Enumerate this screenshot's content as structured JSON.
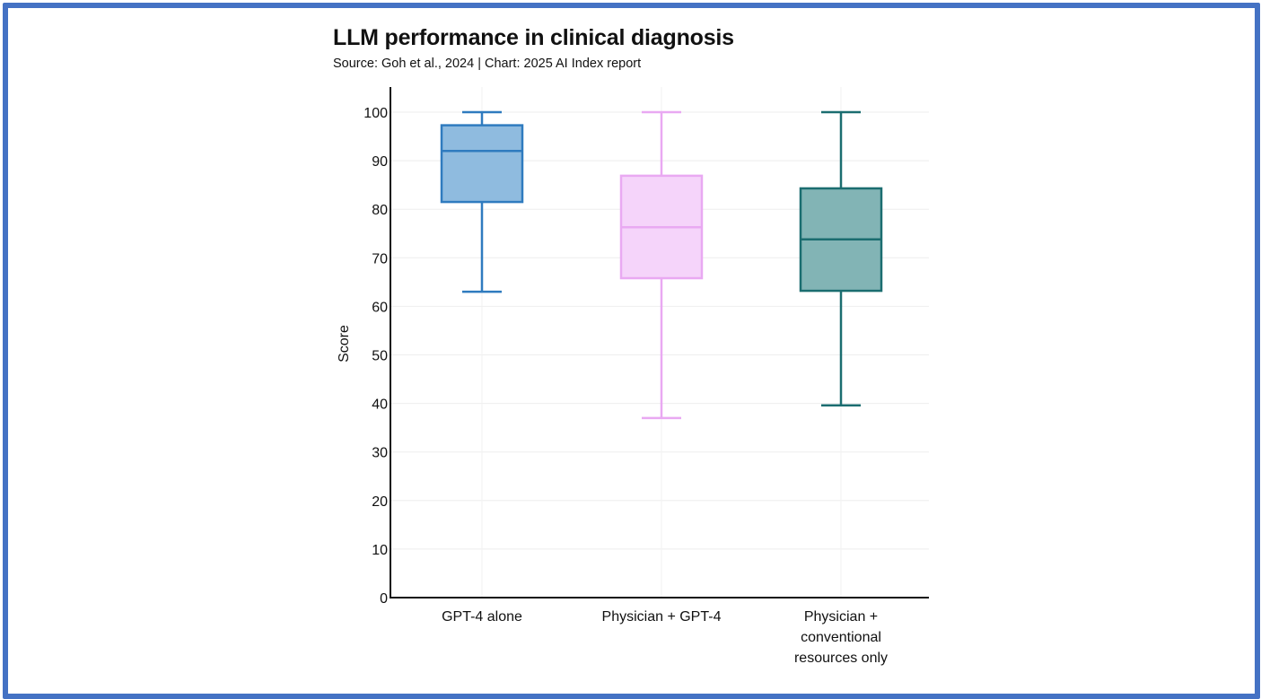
{
  "header": {
    "title": "LLM performance in clinical diagnosis",
    "subtitle": "Source: Goh et al., 2024 | Chart: 2025 AI Index report"
  },
  "frame_color": "#4472C4",
  "chart_data": {
    "type": "box",
    "title": "LLM performance in clinical diagnosis",
    "subtitle": "Source: Goh et al., 2024 | Chart: 2025 AI Index report",
    "xlabel": "",
    "ylabel": "Score",
    "ylim": [
      0,
      100
    ],
    "yticks": [
      0,
      10,
      20,
      30,
      40,
      50,
      60,
      70,
      80,
      90,
      100
    ],
    "grid": true,
    "categories": [
      [
        "GPT-4 alone"
      ],
      [
        "Physician + GPT-4"
      ],
      [
        "Physician +",
        "conventional",
        "resources only"
      ]
    ],
    "series": [
      {
        "name": "GPT-4 alone",
        "min": 63,
        "q1": 81.5,
        "median": 92,
        "q3": 97.3,
        "max": 100,
        "fill": "#8FBBDF",
        "stroke": "#2F7BBF"
      },
      {
        "name": "Physician + GPT-4",
        "min": 37,
        "q1": 65.8,
        "median": 76.3,
        "q3": 86.9,
        "max": 100,
        "fill": "#F5D4FA",
        "stroke": "#E9A9F2"
      },
      {
        "name": "Physician + conventional resources only",
        "min": 39.6,
        "q1": 63.2,
        "median": 73.8,
        "q3": 84.3,
        "max": 100,
        "fill": "#82B4B5",
        "stroke": "#1B6D70"
      }
    ]
  }
}
